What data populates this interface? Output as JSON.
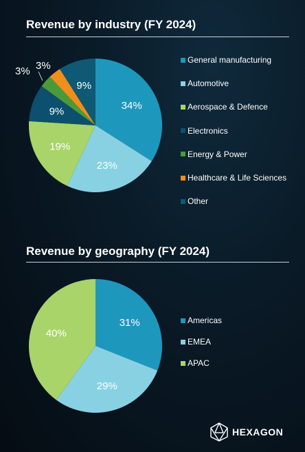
{
  "chart_data": [
    {
      "type": "pie",
      "title": "Revenue by industry (FY 2024)",
      "categories": [
        "General manufacturing",
        "Automotive",
        "Aerospace & Defence",
        "Electronics",
        "Energy & Power",
        "Healthcare & Life Sciences",
        "Other"
      ],
      "values": [
        34,
        23,
        19,
        9,
        3,
        3,
        9
      ],
      "labels": [
        "34%",
        "23%",
        "19%",
        "9%",
        "3%",
        "3%",
        "9%"
      ],
      "colors": [
        "#1e97bd",
        "#88d1e3",
        "#a8d46a",
        "#0c4f6e",
        "#4a9a3a",
        "#f08e1c",
        "#0f5974"
      ],
      "legend_position": "right"
    },
    {
      "type": "pie",
      "title": "Revenue by geography (FY 2024)",
      "categories": [
        "Americas",
        "EMEA",
        "APAC"
      ],
      "values": [
        31,
        29,
        40
      ],
      "labels": [
        "31%",
        "29%",
        "40%"
      ],
      "colors": [
        "#1e97bd",
        "#88d1e3",
        "#a8d46a"
      ],
      "legend_position": "right"
    }
  ],
  "brand": {
    "name": "HEXAGON"
  }
}
